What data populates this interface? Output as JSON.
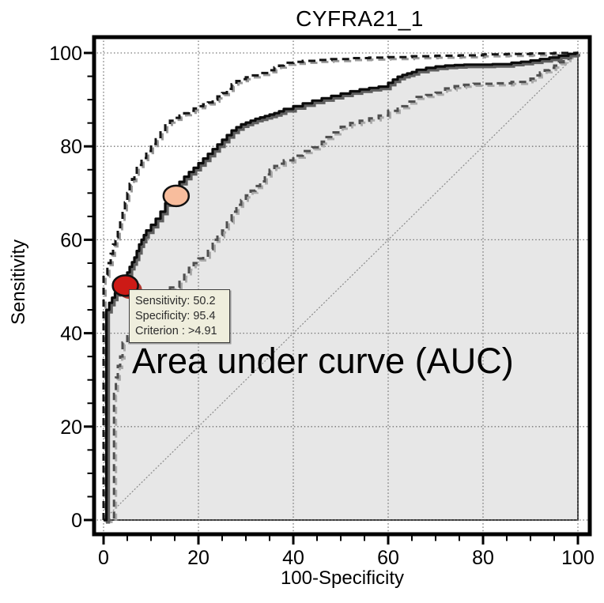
{
  "chart": {
    "title": "CYFRA21_1",
    "xlabel": "100-Specificity",
    "ylabel": "Sensitivity",
    "annotation": "Area under curve (AUC)"
  },
  "tooltip": {
    "lines": [
      "Sensitivity: 50.2",
      "Specificity: 95.4",
      "Criterion : >4.91"
    ]
  },
  "colors": {
    "curve": "#0b0b0b",
    "curve_shadow": "#5f5f5f",
    "ci_upper": "#151515",
    "ci_upper_shadow": "#9a9a9a",
    "ci_lower": "#4f4f4f",
    "ci_lower_shadow": "#ababab",
    "fill": "#e7e7e7",
    "fill_edge": "#3c3c3c",
    "grid": "#777777",
    "diagonal": "#8a8a8a",
    "frame": "#000000",
    "tick": "#000000",
    "text": "#000000",
    "marker_red": "#cd1a16",
    "marker_red_shadow": "#b23a32",
    "marker_pink": "#f8bd9d",
    "marker_outline": "#111111",
    "tooltip_bg": "#efeedd",
    "tooltip_border": "#3f3f3f"
  },
  "chart_data": {
    "type": "line",
    "title": "CYFRA21_1",
    "xlabel": "100-Specificity",
    "ylabel": "Sensitivity",
    "xlim": [
      0,
      100
    ],
    "ylim": [
      0,
      100
    ],
    "ticks_major": [
      0,
      20,
      40,
      60,
      80,
      100
    ],
    "minor_tick_step": 5,
    "grid": "dotted-every-20",
    "legend": "none",
    "annotation": "Area under curve (AUC)",
    "series": [
      {
        "name": "ROC curve (CYFRA21_1)",
        "style": "solid-step",
        "points": [
          [
            0,
            0
          ],
          [
            0.6,
            0
          ],
          [
            0.6,
            43.8
          ],
          [
            1.2,
            45
          ],
          [
            1.8,
            46.5
          ],
          [
            2.4,
            47.6
          ],
          [
            3,
            48.6
          ],
          [
            3.8,
            49.5
          ],
          [
            4.6,
            50.2
          ],
          [
            5,
            51.8
          ],
          [
            5.5,
            53
          ],
          [
            6,
            54.2
          ],
          [
            6.5,
            55.2
          ],
          [
            7,
            56.2
          ],
          [
            7.5,
            57.6
          ],
          [
            8,
            59
          ],
          [
            8.5,
            60
          ],
          [
            9,
            61
          ],
          [
            10,
            62
          ],
          [
            11,
            63.2
          ],
          [
            12,
            64.5
          ],
          [
            13,
            66
          ],
          [
            14,
            67.8
          ],
          [
            15.2,
            69.6
          ],
          [
            16,
            71
          ],
          [
            17,
            72.4
          ],
          [
            18,
            73.5
          ],
          [
            19,
            74.5
          ],
          [
            20,
            75.4
          ],
          [
            21,
            76.4
          ],
          [
            22,
            77.4
          ],
          [
            23,
            78.4
          ],
          [
            24,
            79.4
          ],
          [
            25,
            80.4
          ],
          [
            26,
            81.4
          ],
          [
            27,
            82.4
          ],
          [
            28,
            83.4
          ],
          [
            29,
            84.1
          ],
          [
            30,
            84.7
          ],
          [
            31,
            85.1
          ],
          [
            32,
            85.5
          ],
          [
            33,
            85.9
          ],
          [
            34,
            86.2
          ],
          [
            35,
            86.5
          ],
          [
            36,
            86.8
          ],
          [
            37,
            87.1
          ],
          [
            38,
            87.5
          ],
          [
            40,
            88
          ],
          [
            42,
            88.6
          ],
          [
            44,
            89.2
          ],
          [
            46,
            89.8
          ],
          [
            48,
            90.3
          ],
          [
            50,
            90.8
          ],
          [
            52,
            91.3
          ],
          [
            54,
            91.8
          ],
          [
            56,
            92.2
          ],
          [
            58,
            92.5
          ],
          [
            60,
            92.8
          ],
          [
            61,
            93.6
          ],
          [
            62,
            94.3
          ],
          [
            63,
            94.9
          ],
          [
            64,
            95.3
          ],
          [
            65,
            95.6
          ],
          [
            66,
            95.9
          ],
          [
            68,
            96.4
          ],
          [
            70,
            96.8
          ],
          [
            72,
            97.1
          ],
          [
            74,
            97.3
          ],
          [
            76,
            97.4
          ],
          [
            78,
            97.5
          ],
          [
            82,
            97.5
          ],
          [
            86,
            97.6
          ],
          [
            88,
            97.9
          ],
          [
            90,
            98.1
          ],
          [
            92,
            98.4
          ],
          [
            94,
            98.7
          ],
          [
            96,
            99
          ],
          [
            98,
            99.4
          ],
          [
            99.5,
            99.8
          ],
          [
            100,
            100
          ]
        ]
      },
      {
        "name": "95% CI upper bound",
        "style": "dashed-step",
        "points": [
          [
            0,
            0
          ],
          [
            0,
            50
          ],
          [
            0.8,
            52.5
          ],
          [
            1.5,
            55
          ],
          [
            2,
            57
          ],
          [
            2.5,
            59
          ],
          [
            3,
            60.5
          ],
          [
            3.5,
            62
          ],
          [
            4,
            64
          ],
          [
            4.5,
            66
          ],
          [
            5,
            68
          ],
          [
            5.5,
            70
          ],
          [
            6,
            72
          ],
          [
            6.5,
            73
          ],
          [
            7,
            74
          ],
          [
            8,
            76
          ],
          [
            9,
            77.5
          ],
          [
            10,
            79
          ],
          [
            11,
            80.5
          ],
          [
            12,
            81.5
          ],
          [
            13,
            83
          ],
          [
            14,
            84.5
          ],
          [
            15,
            85.5
          ],
          [
            16,
            86.1
          ],
          [
            17,
            86.6
          ],
          [
            18,
            87.1
          ],
          [
            19,
            87.6
          ],
          [
            20,
            88.1
          ],
          [
            21,
            88.6
          ],
          [
            22,
            89
          ],
          [
            23,
            89.4
          ],
          [
            24,
            90
          ],
          [
            25,
            90.7
          ],
          [
            26,
            91.4
          ],
          [
            27,
            92.3
          ],
          [
            28,
            93.3
          ],
          [
            29,
            94
          ],
          [
            30,
            94.4
          ],
          [
            31,
            94.8
          ],
          [
            33,
            95.2
          ],
          [
            35,
            95.7
          ],
          [
            36,
            96.3
          ],
          [
            37,
            96.9
          ],
          [
            38,
            97.3
          ],
          [
            40,
            97.9
          ],
          [
            42,
            98.1
          ],
          [
            45,
            98.3
          ],
          [
            48,
            98.5
          ],
          [
            52,
            98.7
          ],
          [
            56,
            98.9
          ],
          [
            60,
            99
          ],
          [
            65,
            99.1
          ],
          [
            70,
            99.3
          ],
          [
            75,
            99.4
          ],
          [
            80,
            99.5
          ],
          [
            85,
            99.7
          ],
          [
            90,
            99.8
          ],
          [
            95,
            99.9
          ],
          [
            100,
            100
          ]
        ]
      },
      {
        "name": "95% CI lower bound",
        "style": "dashed-step-gray",
        "points": [
          [
            0,
            0
          ],
          [
            2.2,
            0
          ],
          [
            2.2,
            22
          ],
          [
            2.6,
            27
          ],
          [
            3,
            30.5
          ],
          [
            3.5,
            33
          ],
          [
            4,
            35
          ],
          [
            5,
            38
          ],
          [
            6,
            40
          ],
          [
            7,
            41.5
          ],
          [
            8,
            43
          ],
          [
            10,
            45
          ],
          [
            12,
            47
          ],
          [
            14,
            48.5
          ],
          [
            16,
            49.8
          ],
          [
            17,
            51
          ],
          [
            18,
            52.5
          ],
          [
            19,
            54
          ],
          [
            20,
            55
          ],
          [
            21,
            56
          ],
          [
            22,
            56.6
          ],
          [
            23,
            58
          ],
          [
            24,
            60
          ],
          [
            25,
            61
          ],
          [
            26,
            62
          ],
          [
            27,
            64
          ],
          [
            28,
            66
          ],
          [
            29,
            67.5
          ],
          [
            30,
            68.5
          ],
          [
            31,
            69.5
          ],
          [
            32,
            70.5
          ],
          [
            33,
            71.5
          ],
          [
            34,
            72.5
          ],
          [
            35,
            74
          ],
          [
            36,
            75
          ],
          [
            37,
            75.8
          ],
          [
            38,
            76.3
          ],
          [
            40,
            77
          ],
          [
            42,
            78
          ],
          [
            44,
            79
          ],
          [
            46,
            79.8
          ],
          [
            47,
            81
          ],
          [
            48,
            82
          ],
          [
            50,
            83
          ],
          [
            52,
            84.2
          ],
          [
            54,
            85
          ],
          [
            56,
            85.5
          ],
          [
            58,
            86
          ],
          [
            60,
            86.6
          ],
          [
            62,
            87.6
          ],
          [
            64,
            88.6
          ],
          [
            66,
            89.6
          ],
          [
            68,
            90.6
          ],
          [
            70,
            91
          ],
          [
            72,
            91.5
          ],
          [
            74,
            92.4
          ],
          [
            76,
            92.9
          ],
          [
            78,
            93.2
          ],
          [
            82,
            93.4
          ],
          [
            86,
            93.5
          ],
          [
            90,
            93.8
          ],
          [
            91,
            94.5
          ],
          [
            92,
            95.2
          ],
          [
            93,
            95.8
          ],
          [
            94,
            96.3
          ],
          [
            95,
            96.8
          ],
          [
            96,
            97.3
          ],
          [
            97,
            98
          ],
          [
            98,
            98.7
          ],
          [
            99,
            99.3
          ],
          [
            100,
            100
          ]
        ]
      },
      {
        "name": "reference diagonal",
        "style": "thin-dotted-line",
        "points": [
          [
            0,
            0
          ],
          [
            100,
            100
          ]
        ]
      }
    ],
    "markers": [
      {
        "id": "criterion-point",
        "x": 4.6,
        "y": 50.2,
        "fill_key": "marker_red",
        "shadow": true,
        "meaning": "operating point: Sensitivity 50.2, Specificity 95.4, Criterion >4.91"
      },
      {
        "id": "secondary-point",
        "x": 15.3,
        "y": 69.4,
        "fill_key": "marker_pink",
        "shadow": false
      }
    ],
    "tooltip_lines": [
      "Sensitivity: 50.2",
      "Specificity: 95.4",
      "Criterion : >4.91"
    ]
  }
}
